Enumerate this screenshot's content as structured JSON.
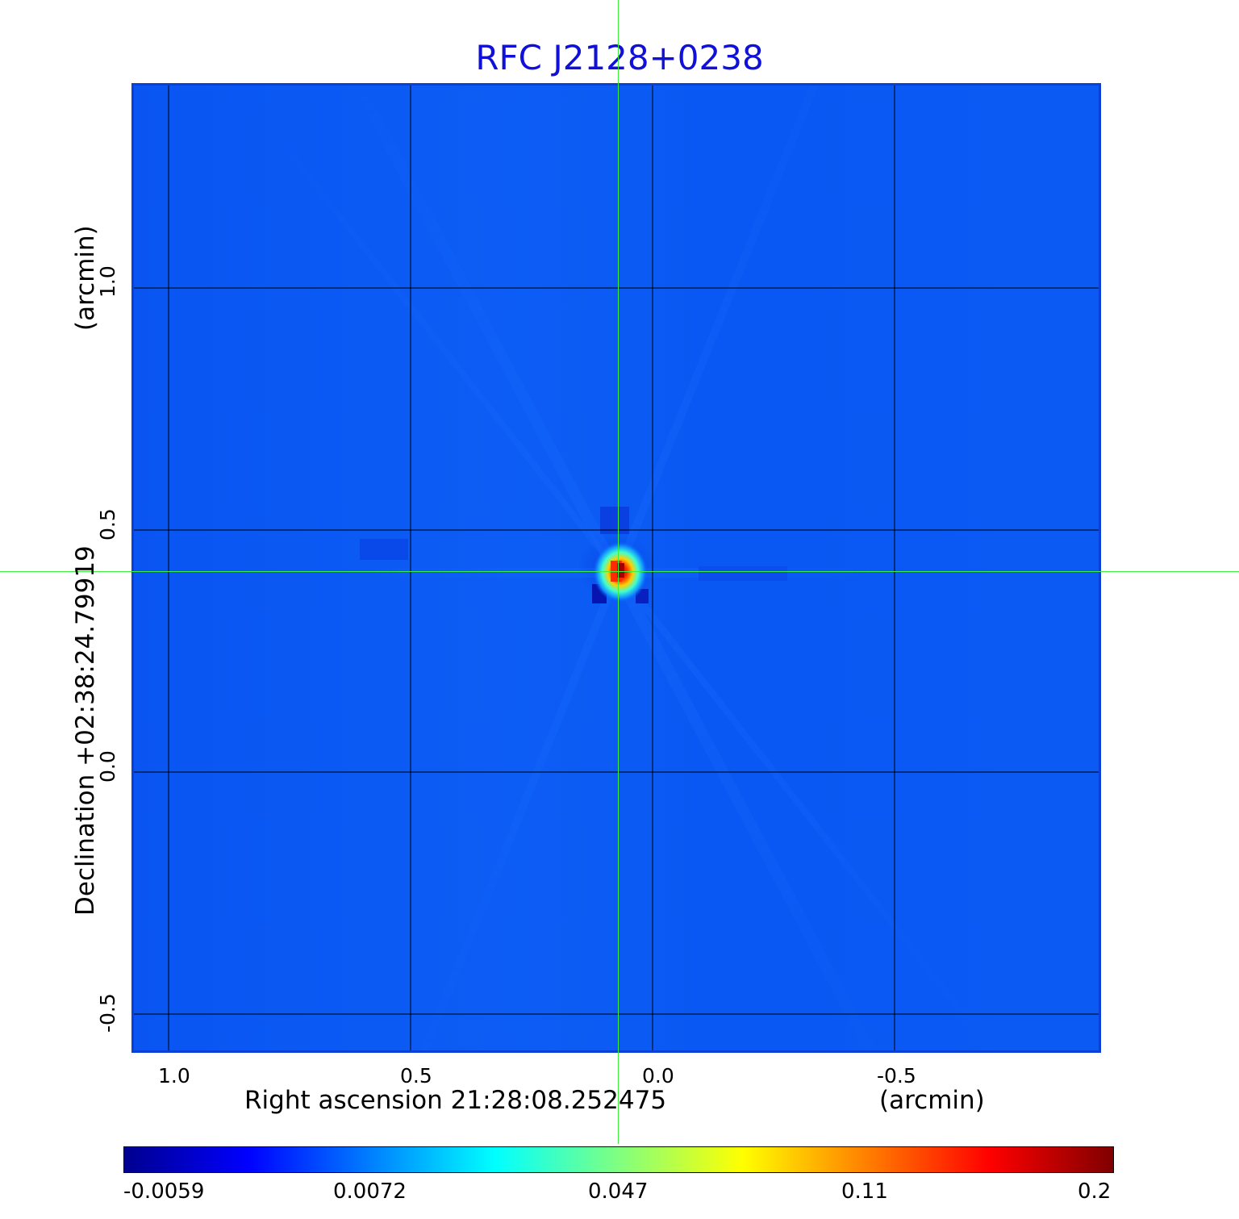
{
  "title": "RFC J2128+0238",
  "axes": {
    "x_label": "Right ascension  21:28:08.252475",
    "x_unit": "(arcmin)",
    "y_label": "Declination  +02:38:24.79919",
    "y_unit": "(arcmin)",
    "x_ticks": [
      "1.0",
      "0.5",
      "0.0",
      "-0.5"
    ],
    "y_ticks": [
      "1.0",
      "0.5",
      "0.0",
      "-0.5"
    ]
  },
  "colorbar": {
    "labels": [
      "-0.0059",
      "0.0072",
      "0.047",
      "0.11",
      "0.2"
    ],
    "colormap": [
      "#00008f",
      "#0000ff",
      "#0080ff",
      "#00ffff",
      "#80ff80",
      "#ffff00",
      "#ff8000",
      "#ff0000",
      "#800000"
    ]
  },
  "colors": {
    "title": "#1010d8",
    "crosshair": "#3df03d",
    "frame": "#0a3fd8",
    "background_field": "#0b5af4"
  }
}
